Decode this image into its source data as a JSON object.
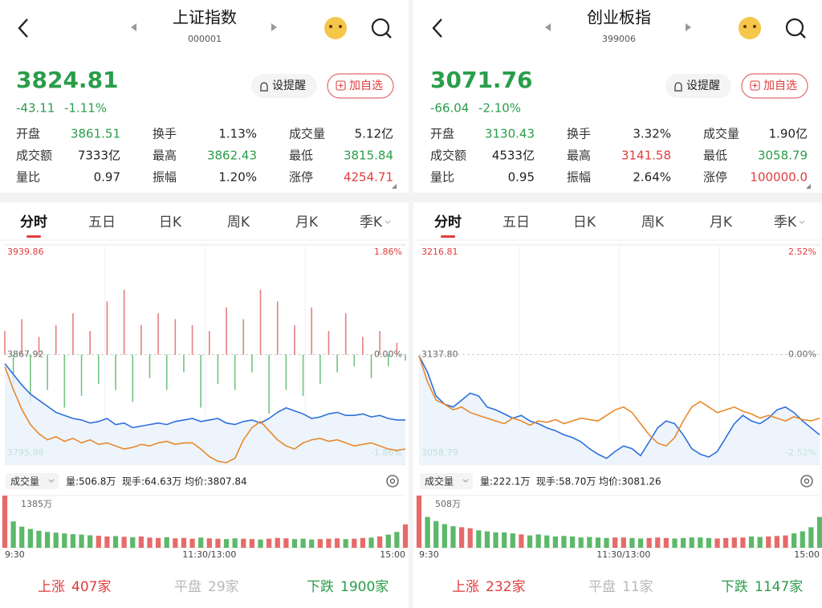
{
  "panels": [
    {
      "header": {
        "title": "上证指数",
        "code": "000001"
      },
      "quote": {
        "price": "3824.81",
        "change": "-43.11",
        "change_pct": "-1.11%"
      },
      "buttons": [
        "设提醒",
        "加自选"
      ],
      "stats": [
        {
          "label": "开盘",
          "value": "3861.51",
          "color": "#2a9d4a"
        },
        {
          "label": "换手",
          "value": "1.13%",
          "color": "#222222"
        },
        {
          "label": "成交量",
          "value": "5.12亿",
          "color": "#222222"
        },
        {
          "label": "成交额",
          "value": "7333亿",
          "color": "#222222"
        },
        {
          "label": "最高",
          "value": "3862.43",
          "color": "#2a9d4a"
        },
        {
          "label": "最低",
          "value": "3815.84",
          "color": "#2a9d4a"
        },
        {
          "label": "量比",
          "value": "0.97",
          "color": "#222222"
        },
        {
          "label": "振幅",
          "value": "1.20%",
          "color": "#222222"
        },
        {
          "label": "涨停",
          "value": "4254.71",
          "color": "#e03c3c"
        }
      ],
      "tabs": [
        "分时",
        "五日",
        "日K",
        "周K",
        "月K",
        "季K"
      ],
      "volume_info": {
        "label": "成交量",
        "stats": [
          "量:506.8万",
          "现手:64.63万",
          "均价:3807.84"
        ]
      },
      "footer": [
        {
          "label": "上涨",
          "value": "407家",
          "color": "#e03c3c"
        },
        {
          "label": "平盘",
          "value": "29家",
          "color": "#b8b8b8"
        },
        {
          "label": "下跌",
          "value": "1900家",
          "color": "#2a9d4a"
        }
      ]
    },
    {
      "header": {
        "title": "创业板指",
        "code": "399006"
      },
      "quote": {
        "price": "3071.76",
        "change": "-66.04",
        "change_pct": "-2.10%"
      },
      "buttons": [
        "设提醒",
        "加自选"
      ],
      "stats": [
        {
          "label": "开盘",
          "value": "3130.43",
          "color": "#2a9d4a"
        },
        {
          "label": "换手",
          "value": "3.32%",
          "color": "#222222"
        },
        {
          "label": "成交量",
          "value": "1.90亿",
          "color": "#222222"
        },
        {
          "label": "成交额",
          "value": "4533亿",
          "color": "#222222"
        },
        {
          "label": "最高",
          "value": "3141.58",
          "color": "#e03c3c"
        },
        {
          "label": "最低",
          "value": "3058.79",
          "color": "#2a9d4a"
        },
        {
          "label": "量比",
          "value": "0.95",
          "color": "#222222"
        },
        {
          "label": "振幅",
          "value": "2.64%",
          "color": "#222222"
        },
        {
          "label": "涨停",
          "value": "100000.0",
          "color": "#e03c3c"
        }
      ],
      "tabs": [
        "分时",
        "五日",
        "日K",
        "周K",
        "月K",
        "季K"
      ],
      "volume_info": {
        "label": "成交量",
        "stats": [
          "量:222.1万",
          "现手:58.70万",
          "均价:3081.26"
        ]
      },
      "footer": [
        {
          "label": "上涨",
          "value": "232家",
          "color": "#e03c3c"
        },
        {
          "label": "平盘",
          "value": "11家",
          "color": "#b8b8b8"
        },
        {
          "label": "下跌",
          "value": "1147家",
          "color": "#2a9d4a"
        }
      ]
    }
  ],
  "chart_data": [
    {
      "type": "line",
      "categories": [
        "9:30",
        null,
        null,
        null,
        null,
        null,
        null,
        null,
        null,
        null,
        null,
        null,
        null,
        null,
        null,
        null,
        null,
        null,
        null,
        null,
        null,
        null,
        null,
        null,
        "11:30/13:00",
        null,
        null,
        null,
        null,
        null,
        null,
        null,
        null,
        null,
        null,
        null,
        null,
        null,
        null,
        null,
        null,
        null,
        null,
        null,
        null,
        null,
        null,
        "15:00"
      ],
      "series": [
        {
          "color": "#2f6fdb",
          "values": [
            3862,
            3855,
            3848,
            3842,
            3838,
            3834,
            3830,
            3828,
            3826,
            3825,
            3823,
            3824,
            3826,
            3822,
            3823,
            3820,
            3821,
            3822,
            3823,
            3822,
            3824,
            3825,
            3826,
            3824,
            3825,
            3826,
            3823,
            3822,
            3824,
            3825,
            3823,
            3826,
            3830,
            3833,
            3831,
            3829,
            3826,
            3827,
            3829,
            3830,
            3828,
            3828,
            3829,
            3827,
            3828,
            3826,
            3825,
            3825
          ]
        },
        {
          "color": "#e8892b",
          "values": [
            3860,
            3845,
            3832,
            3822,
            3816,
            3812,
            3814,
            3811,
            3813,
            3810,
            3812,
            3809,
            3810,
            3808,
            3806,
            3807,
            3809,
            3808,
            3810,
            3811,
            3809,
            3810,
            3810,
            3806,
            3801,
            3798,
            3797,
            3800,
            3812,
            3820,
            3824,
            3818,
            3812,
            3808,
            3806,
            3810,
            3812,
            3813,
            3811,
            3812,
            3810,
            3808,
            3809,
            3810,
            3808,
            3806,
            3805,
            3806
          ]
        }
      ],
      "breadth_values": [
        0.4,
        -0.5,
        0.6,
        -0.8,
        0.3,
        -0.6,
        0.5,
        -0.9,
        0.7,
        -0.7,
        0.4,
        -0.5,
        0.9,
        -0.6,
        1.1,
        -0.8,
        0.5,
        -0.4,
        0.7,
        -0.6,
        0.6,
        -0.3,
        0.5,
        -0.9,
        0.4,
        -0.5,
        0.8,
        -0.6,
        0.6,
        -0.3,
        1.1,
        -1.0,
        0.9,
        -0.6,
        0.5,
        -0.7,
        0.8,
        -0.5,
        0.4,
        -0.3,
        0.7,
        -0.2,
        0.3,
        -0.4,
        0.4,
        -0.2,
        0.2,
        -0.1
      ],
      "ylim": [
        3795.98,
        3939.86
      ],
      "yticks": [
        3795.98,
        3867.92,
        3939.86
      ],
      "y2lim": [
        -1.86,
        1.86
      ],
      "y2ticks": [
        {
          "value": -1.86,
          "label": "-1.86%"
        },
        {
          "value": 0,
          "label": "0.00%"
        },
        {
          "value": 1.86,
          "label": "1.86%"
        }
      ],
      "volume": {
        "ylim": [
          0,
          1385
        ],
        "yticks": [
          {
            "value": 1385,
            "label": "1385万"
          }
        ],
        "values": [
          1385,
          700,
          560,
          500,
          450,
          420,
          400,
          380,
          360,
          350,
          330,
          320,
          300,
          310,
          290,
          280,
          300,
          270,
          260,
          280,
          250,
          260,
          240,
          270,
          250,
          240,
          230,
          250,
          240,
          230,
          220,
          240,
          260,
          250,
          230,
          240,
          220,
          230,
          240,
          250,
          230,
          240,
          260,
          270,
          300,
          350,
          420,
          620
        ]
      }
    },
    {
      "type": "line",
      "categories": [
        "9:30",
        null,
        null,
        null,
        null,
        null,
        null,
        null,
        null,
        null,
        null,
        null,
        null,
        null,
        null,
        null,
        null,
        null,
        null,
        null,
        null,
        null,
        null,
        null,
        "11:30/13:00",
        null,
        null,
        null,
        null,
        null,
        null,
        null,
        null,
        null,
        null,
        null,
        null,
        null,
        null,
        null,
        null,
        null,
        null,
        null,
        null,
        null,
        null,
        "15:00"
      ],
      "series": [
        {
          "color": "#2f6fdb",
          "values": [
            3137,
            3125,
            3108,
            3102,
            3100,
            3105,
            3110,
            3108,
            3100,
            3098,
            3095,
            3092,
            3094,
            3090,
            3088,
            3085,
            3083,
            3080,
            3078,
            3075,
            3070,
            3066,
            3063,
            3068,
            3072,
            3070,
            3065,
            3075,
            3085,
            3090,
            3088,
            3080,
            3070,
            3066,
            3064,
            3068,
            3078,
            3088,
            3094,
            3090,
            3088,
            3092,
            3098,
            3100,
            3096,
            3090,
            3085,
            3080
          ]
        },
        {
          "color": "#e8892b",
          "values": [
            3137,
            3118,
            3105,
            3102,
            3098,
            3100,
            3096,
            3094,
            3092,
            3090,
            3088,
            3092,
            3090,
            3087,
            3090,
            3089,
            3091,
            3088,
            3090,
            3092,
            3091,
            3090,
            3094,
            3098,
            3100,
            3096,
            3088,
            3080,
            3074,
            3072,
            3078,
            3090,
            3100,
            3104,
            3100,
            3096,
            3098,
            3100,
            3097,
            3095,
            3092,
            3094,
            3092,
            3090,
            3093,
            3091,
            3090,
            3092
          ]
        }
      ],
      "ylim": [
        3058.79,
        3216.81
      ],
      "yticks": [
        3058.79,
        {
          "value": 3137.8,
          "label": "3137.80"
        },
        3216.81
      ],
      "y2lim": [
        -2.52,
        2.52
      ],
      "y2ticks": [
        {
          "value": -2.52,
          "label": "-2.52%"
        },
        {
          "value": 0,
          "label": "0.00%"
        },
        {
          "value": 2.52,
          "label": "2.52%"
        }
      ],
      "volume": {
        "ylim": [
          0,
          508
        ],
        "yticks": [
          {
            "value": 508,
            "label": "508万"
          }
        ],
        "values": [
          508,
          300,
          260,
          230,
          210,
          200,
          190,
          170,
          160,
          150,
          150,
          140,
          130,
          120,
          130,
          120,
          110,
          115,
          110,
          100,
          105,
          100,
          95,
          100,
          100,
          95,
          90,
          95,
          100,
          95,
          90,
          95,
          100,
          100,
          95,
          90,
          95,
          100,
          100,
          110,
          105,
          110,
          115,
          120,
          140,
          160,
          200,
          300
        ]
      }
    }
  ]
}
